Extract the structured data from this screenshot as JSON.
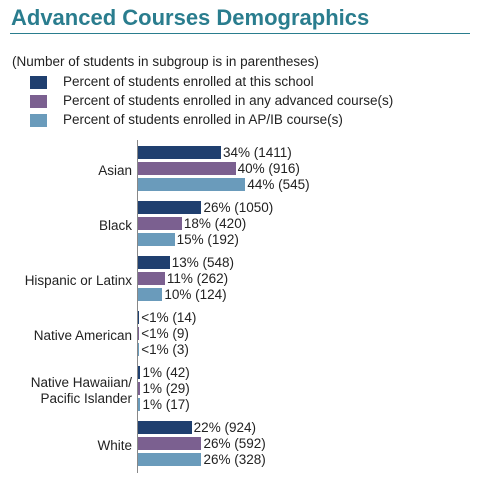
{
  "chart_data": {
    "type": "bar",
    "orientation": "horizontal",
    "title": "Advanced Courses Demographics",
    "subtitle": "(Number of students in subgroup is in parentheses)",
    "categories": [
      "Asian",
      "Black",
      "Hispanic or Latinx",
      "Native American",
      "Native Hawaiian/ Pacific Islander",
      "White"
    ],
    "series": [
      {
        "name": "Percent of students enrolled at this school",
        "color": "#1f3f6f",
        "values": [
          34,
          26,
          13,
          0.5,
          1,
          22
        ],
        "value_labels": [
          "34% (1411)",
          "26% (1050)",
          "13% (548)",
          "<1% (14)",
          "1% (42)",
          "22% (924)"
        ]
      },
      {
        "name": "Percent of students enrolled in any advanced course(s)",
        "color": "#7b6090",
        "values": [
          40,
          18,
          11,
          0.5,
          1,
          26
        ],
        "value_labels": [
          "40% (916)",
          "18% (420)",
          "11% (262)",
          "<1% (9)",
          "1% (29)",
          "26% (592)"
        ]
      },
      {
        "name": "Percent of students enrolled in AP/IB course(s)",
        "color": "#6a9bbb",
        "values": [
          44,
          15,
          10,
          0.5,
          1,
          26
        ],
        "value_labels": [
          "44% (545)",
          "15% (192)",
          "10% (124)",
          "<1% (3)",
          "1% (17)",
          "26% (328)"
        ]
      }
    ]
  }
}
